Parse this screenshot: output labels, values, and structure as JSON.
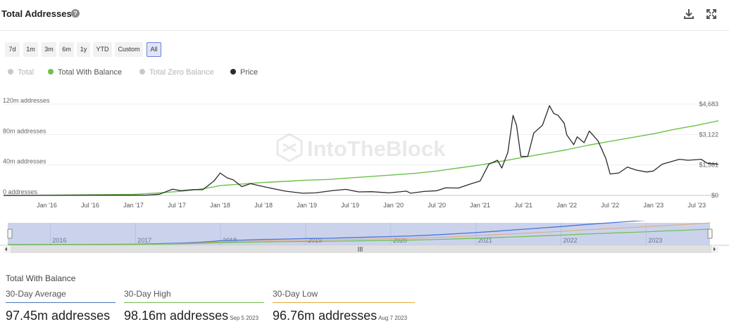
{
  "header": {
    "title": "Total Addresses",
    "help_icon": "?"
  },
  "range_buttons": [
    "7d",
    "1m",
    "3m",
    "6m",
    "1y",
    "YTD",
    "Custom",
    "All"
  ],
  "active_range": "All",
  "legend": [
    {
      "label": "Total",
      "color": "#c8c8c8",
      "enabled": false
    },
    {
      "label": "Total With Balance",
      "color": "#6cc04a",
      "enabled": true
    },
    {
      "label": "Total Zero Balance",
      "color": "#c8c8c8",
      "enabled": false
    },
    {
      "label": "Price",
      "color": "#2b2b2b",
      "enabled": true
    }
  ],
  "watermark": "IntoTheBlock",
  "chart_data": {
    "type": "line",
    "title": "Total Addresses",
    "x_start": 2015.5,
    "x_end": 2023.75,
    "x_ticks": [
      {
        "t": 2016.0,
        "label": "Jan '16"
      },
      {
        "t": 2016.5,
        "label": "Jul '16"
      },
      {
        "t": 2017.0,
        "label": "Jan '17"
      },
      {
        "t": 2017.5,
        "label": "Jul '17"
      },
      {
        "t": 2018.0,
        "label": "Jan '18"
      },
      {
        "t": 2018.5,
        "label": "Jul '18"
      },
      {
        "t": 2019.0,
        "label": "Jan '19"
      },
      {
        "t": 2019.5,
        "label": "Jul '19"
      },
      {
        "t": 2020.0,
        "label": "Jan '20"
      },
      {
        "t": 2020.5,
        "label": "Jul '20"
      },
      {
        "t": 2021.0,
        "label": "Jan '21"
      },
      {
        "t": 2021.5,
        "label": "Jul '21"
      },
      {
        "t": 2022.0,
        "label": "Jan '22"
      },
      {
        "t": 2022.5,
        "label": "Jul '22"
      },
      {
        "t": 2023.0,
        "label": "Jan '23"
      },
      {
        "t": 2023.5,
        "label": "Jul '23"
      }
    ],
    "y_left": {
      "min": 0,
      "max": 120,
      "ticks": [
        {
          "v": 0,
          "label": "0 addresses"
        },
        {
          "v": 40,
          "label": "40m addresses"
        },
        {
          "v": 80,
          "label": "80m addresses"
        },
        {
          "v": 120,
          "label": "120m addresses"
        }
      ]
    },
    "y_right": {
      "min": 0,
      "max": 4683,
      "ticks": [
        {
          "v": 0,
          "label": "$0"
        },
        {
          "v": 1561,
          "label": "$1,561"
        },
        {
          "v": 3122,
          "label": "$3,122"
        },
        {
          "v": 4683,
          "label": "$4,683"
        }
      ]
    },
    "series": [
      {
        "name": "Total With Balance",
        "axis": "left",
        "color": "#6cc04a",
        "points": [
          [
            2015.5,
            0
          ],
          [
            2016.0,
            0.3
          ],
          [
            2016.5,
            0.8
          ],
          [
            2017.0,
            1.5
          ],
          [
            2017.25,
            3
          ],
          [
            2017.5,
            5
          ],
          [
            2017.75,
            8
          ],
          [
            2017.92,
            11
          ],
          [
            2018.0,
            13
          ],
          [
            2018.25,
            15
          ],
          [
            2018.5,
            17
          ],
          [
            2018.75,
            18.5
          ],
          [
            2019.0,
            20
          ],
          [
            2019.25,
            21
          ],
          [
            2019.5,
            23
          ],
          [
            2019.75,
            25
          ],
          [
            2020.0,
            27
          ],
          [
            2020.25,
            29
          ],
          [
            2020.5,
            32
          ],
          [
            2020.75,
            36
          ],
          [
            2021.0,
            40
          ],
          [
            2021.25,
            45
          ],
          [
            2021.5,
            50
          ],
          [
            2021.75,
            55
          ],
          [
            2022.0,
            60
          ],
          [
            2022.25,
            66
          ],
          [
            2022.5,
            71
          ],
          [
            2022.75,
            76
          ],
          [
            2023.0,
            81
          ],
          [
            2023.25,
            87
          ],
          [
            2023.5,
            92
          ],
          [
            2023.75,
            98
          ]
        ]
      },
      {
        "name": "Price",
        "axis": "right",
        "color": "#2b2b2b",
        "points": [
          [
            2015.5,
            0
          ],
          [
            2016.0,
            3
          ],
          [
            2016.5,
            10
          ],
          [
            2017.0,
            10
          ],
          [
            2017.15,
            14
          ],
          [
            2017.3,
            60
          ],
          [
            2017.45,
            320
          ],
          [
            2017.55,
            240
          ],
          [
            2017.7,
            300
          ],
          [
            2017.8,
            290
          ],
          [
            2017.93,
            750
          ],
          [
            2018.0,
            1150
          ],
          [
            2018.08,
            900
          ],
          [
            2018.15,
            800
          ],
          [
            2018.25,
            450
          ],
          [
            2018.35,
            600
          ],
          [
            2018.5,
            450
          ],
          [
            2018.75,
            220
          ],
          [
            2018.95,
            110
          ],
          [
            2019.1,
            130
          ],
          [
            2019.3,
            250
          ],
          [
            2019.45,
            310
          ],
          [
            2019.6,
            180
          ],
          [
            2019.75,
            190
          ],
          [
            2019.95,
            130
          ],
          [
            2020.15,
            220
          ],
          [
            2020.2,
            110
          ],
          [
            2020.35,
            200
          ],
          [
            2020.5,
            240
          ],
          [
            2020.6,
            390
          ],
          [
            2020.75,
            380
          ],
          [
            2020.9,
            600
          ],
          [
            2021.0,
            740
          ],
          [
            2021.1,
            1600
          ],
          [
            2021.2,
            1800
          ],
          [
            2021.25,
            1400
          ],
          [
            2021.32,
            2200
          ],
          [
            2021.38,
            4100
          ],
          [
            2021.42,
            3600
          ],
          [
            2021.47,
            2000
          ],
          [
            2021.55,
            2000
          ],
          [
            2021.62,
            3200
          ],
          [
            2021.72,
            3600
          ],
          [
            2021.8,
            4600
          ],
          [
            2021.85,
            4200
          ],
          [
            2021.9,
            4100
          ],
          [
            2021.97,
            3700
          ],
          [
            2022.0,
            3100
          ],
          [
            2022.08,
            2600
          ],
          [
            2022.12,
            3000
          ],
          [
            2022.2,
            2700
          ],
          [
            2022.26,
            3300
          ],
          [
            2022.36,
            2800
          ],
          [
            2022.45,
            1900
          ],
          [
            2022.5,
            1100
          ],
          [
            2022.6,
            1150
          ],
          [
            2022.7,
            1450
          ],
          [
            2022.8,
            1300
          ],
          [
            2022.92,
            1200
          ],
          [
            2023.0,
            1250
          ],
          [
            2023.1,
            1600
          ],
          [
            2023.3,
            1850
          ],
          [
            2023.4,
            1800
          ],
          [
            2023.55,
            1850
          ],
          [
            2023.62,
            1650
          ],
          [
            2023.75,
            1600
          ]
        ]
      }
    ]
  },
  "navigator": {
    "years": [
      "2016",
      "2017",
      "2018",
      "2019",
      "2020",
      "2021",
      "2022",
      "2023"
    ]
  },
  "stats": {
    "series_title": "Total With Balance",
    "items": [
      {
        "label": "30-Day Average",
        "value": "97.45m addresses",
        "date": "",
        "color": "#4a73b9"
      },
      {
        "label": "30-Day High",
        "value": "98.16m addresses",
        "date": "Sep 5 2023",
        "color": "#6cc04a"
      },
      {
        "label": "30-Day Low",
        "value": "96.76m addresses",
        "date": "Aug 7 2023",
        "color": "#e8a83a"
      }
    ]
  }
}
